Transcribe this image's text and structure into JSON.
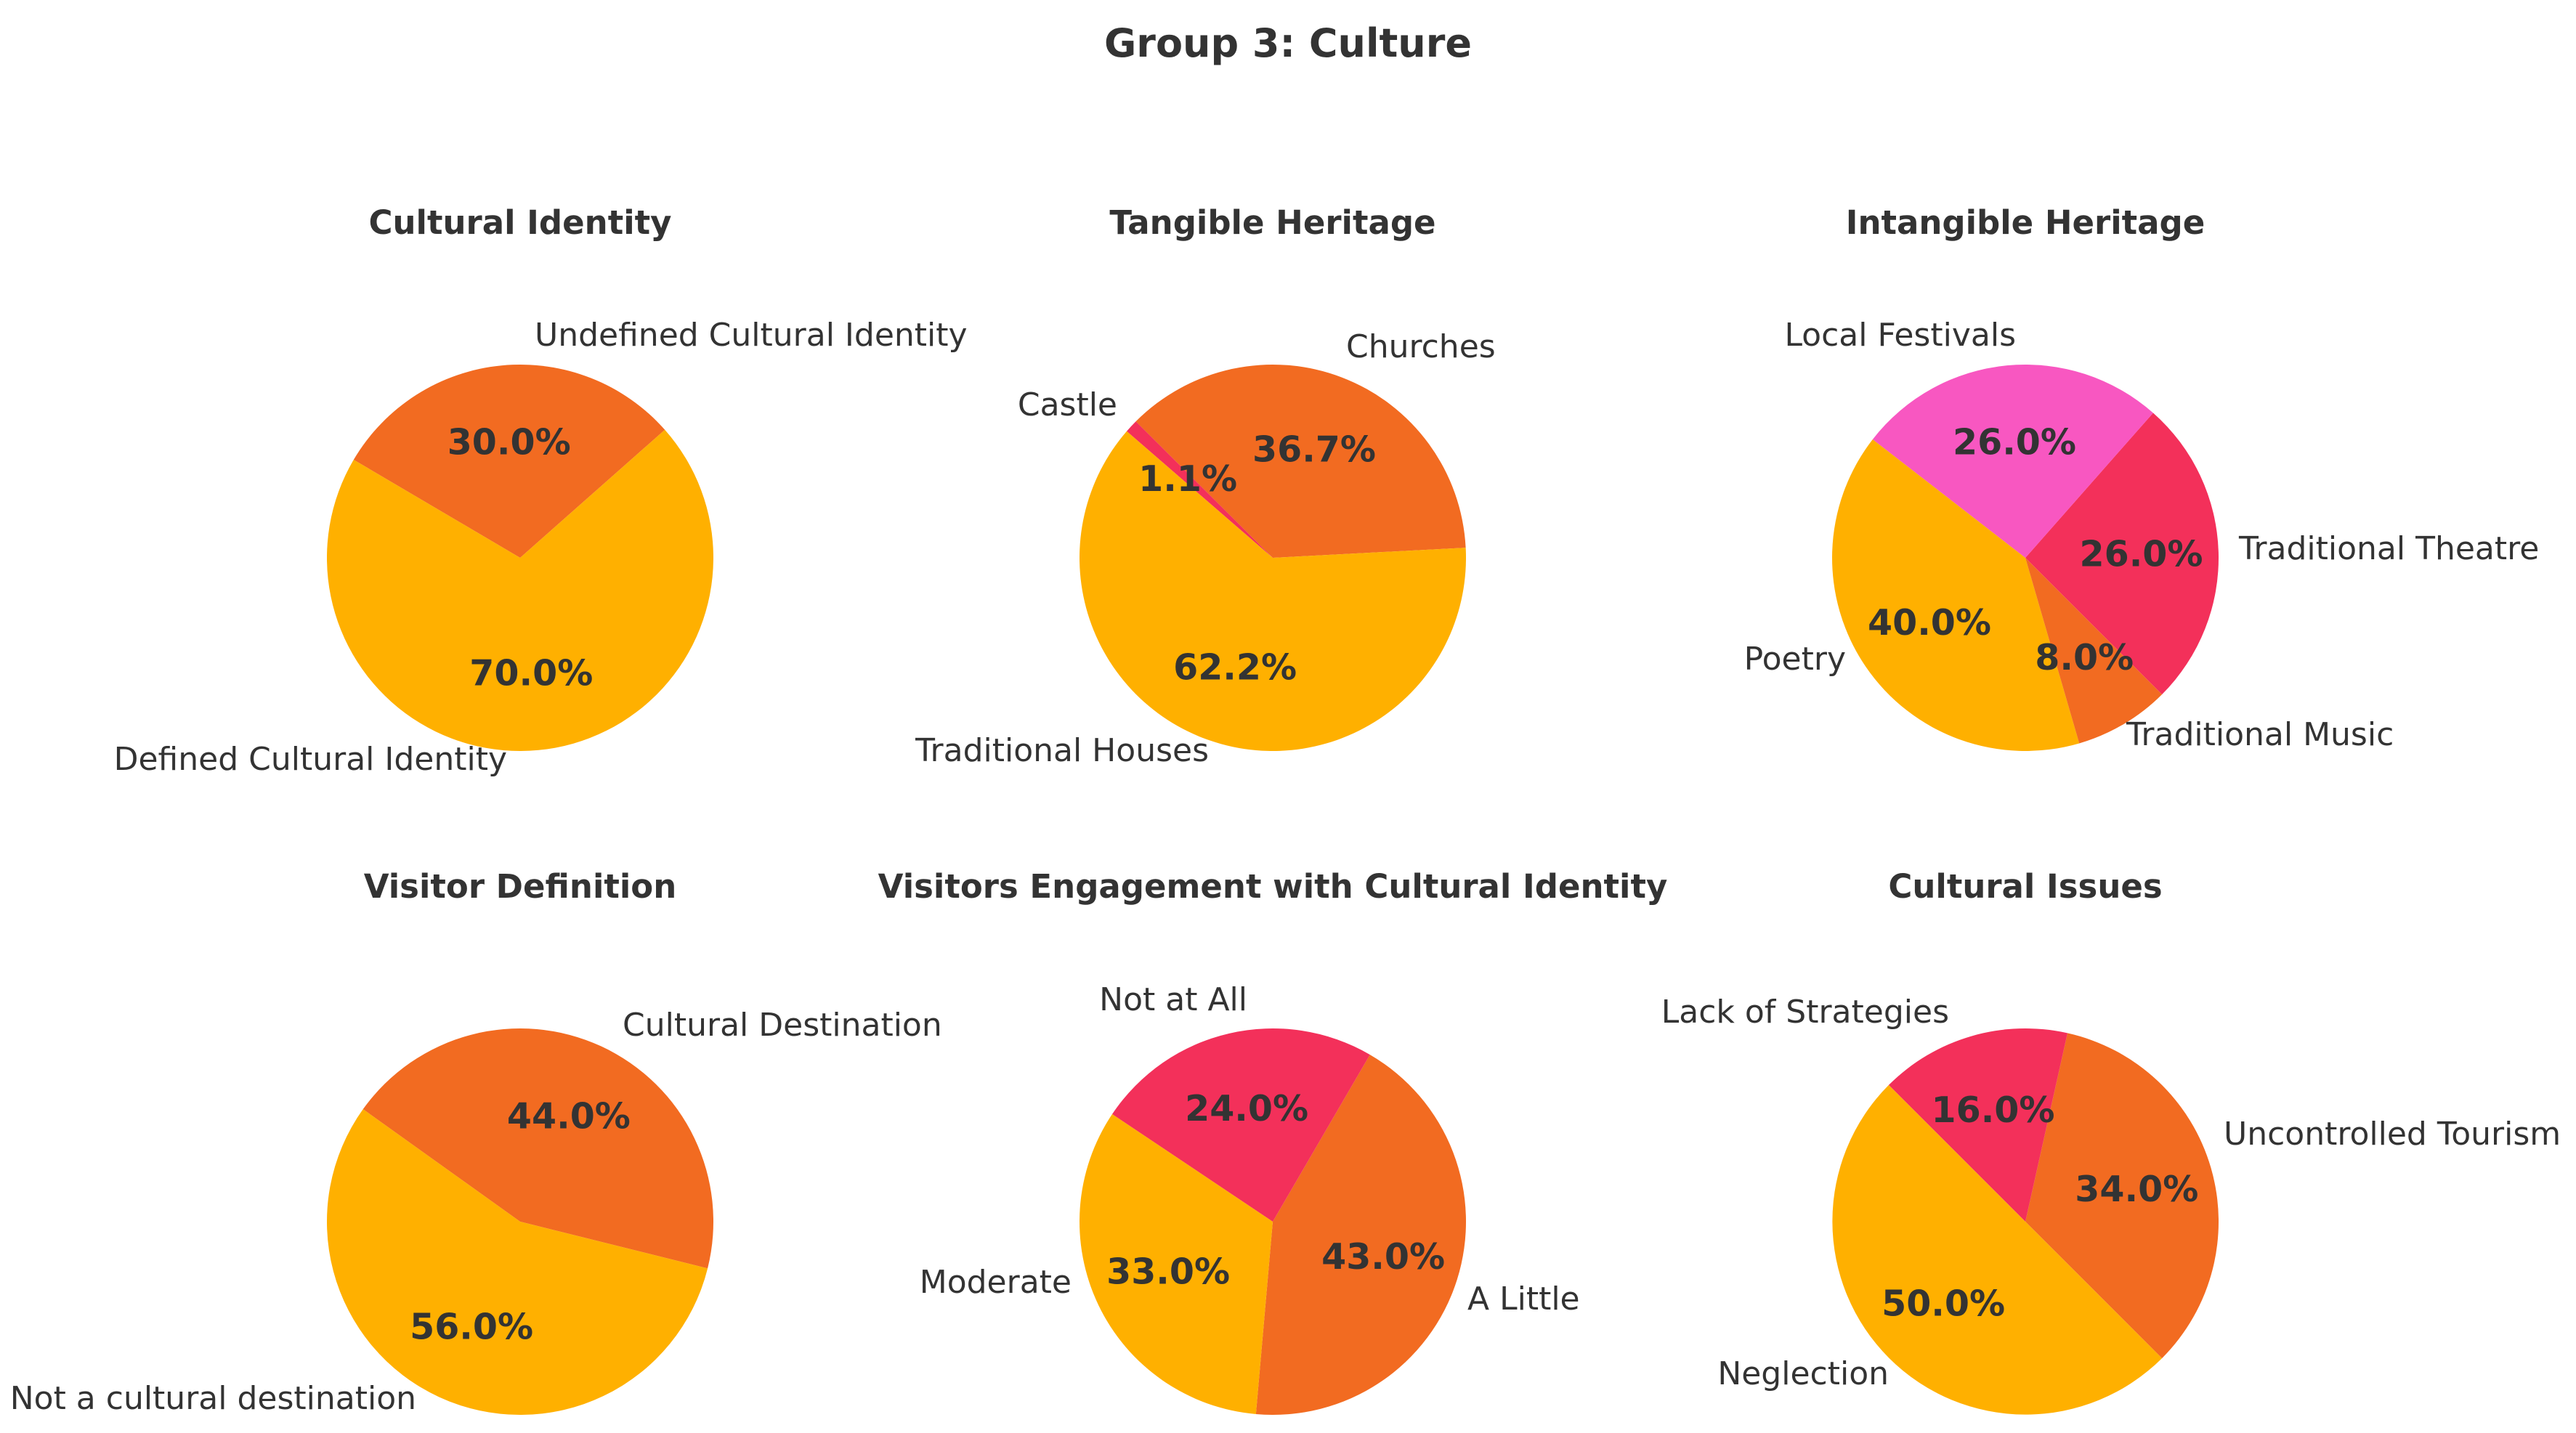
{
  "title": "Group 3: Culture",
  "colors": {
    "orange": "#FFB000",
    "red_orange": "#F26B21",
    "red": "#F3305A",
    "pink": "#F857C1"
  },
  "chart_data": [
    {
      "type": "pie",
      "title": "Cultural Identity",
      "slices": [
        {
          "label": "Undefined Cultural Identity",
          "value": 30.0,
          "pct_label": "30.0%",
          "color": "#F26B21"
        },
        {
          "label": "Defined Cultural Identity",
          "value": 70.0,
          "pct_label": "70.0%",
          "color": "#FFB000"
        }
      ]
    },
    {
      "type": "pie",
      "title": "Tangible Heritage",
      "slices": [
        {
          "label": "Churches",
          "value": 36.7,
          "pct_label": "36.7%",
          "color": "#F26B21"
        },
        {
          "label": "Castle",
          "value": 1.1,
          "pct_label": "1.1%",
          "color": "#F3305A"
        },
        {
          "label": "Traditional Houses",
          "value": 62.2,
          "pct_label": "62.2%",
          "color": "#FFB000"
        }
      ]
    },
    {
      "type": "pie",
      "title": "Intangible Heritage",
      "slices": [
        {
          "label": "Traditional Theatre",
          "value": 26.0,
          "pct_label": "26.0%",
          "color": "#F3305A"
        },
        {
          "label": "Local Festivals",
          "value": 26.0,
          "pct_label": "26.0%",
          "color": "#F857C1"
        },
        {
          "label": "Poetry",
          "value": 40.0,
          "pct_label": "40.0%",
          "color": "#FFB000"
        },
        {
          "label": "Traditional Music",
          "value": 8.0,
          "pct_label": "8.0%",
          "color": "#F26B21"
        }
      ]
    },
    {
      "type": "pie",
      "title": "Visitor Definition",
      "slices": [
        {
          "label": "Cultural Destination",
          "value": 44.0,
          "pct_label": "44.0%",
          "color": "#F26B21"
        },
        {
          "label": "Not a cultural destination",
          "value": 56.0,
          "pct_label": "56.0%",
          "color": "#FFB000"
        }
      ]
    },
    {
      "type": "pie",
      "title": "Visitors Engagement with Cultural Identity",
      "slices": [
        {
          "label": "A Little",
          "value": 43.0,
          "pct_label": "43.0%",
          "color": "#F26B21"
        },
        {
          "label": "Not at All",
          "value": 24.0,
          "pct_label": "24.0%",
          "color": "#F3305A"
        },
        {
          "label": "Moderate",
          "value": 33.0,
          "pct_label": "33.0%",
          "color": "#FFB000"
        }
      ]
    },
    {
      "type": "pie",
      "title": "Cultural Issues",
      "slices": [
        {
          "label": "Uncontrolled Tourism",
          "value": 34.0,
          "pct_label": "34.0%",
          "color": "#F26B21"
        },
        {
          "label": "Lack of Strategies",
          "value": 16.0,
          "pct_label": "16.0%",
          "color": "#F3305A"
        },
        {
          "label": "Neglection",
          "value": 50.0,
          "pct_label": "50.0%",
          "color": "#FFB000"
        }
      ]
    }
  ]
}
